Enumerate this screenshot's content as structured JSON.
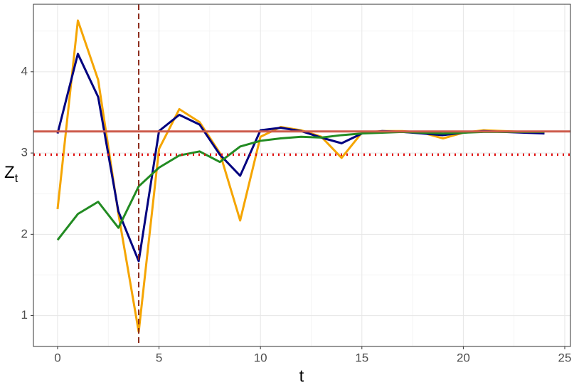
{
  "chart_data": {
    "type": "line",
    "x_label": "t",
    "y_label": "Z",
    "y_label_subscript": "t",
    "x": [
      0,
      1,
      2,
      3,
      4,
      5,
      6,
      7,
      8,
      9,
      10,
      11,
      12,
      13,
      14,
      15,
      16,
      17,
      18,
      19,
      20,
      21,
      22,
      23,
      24
    ],
    "series": [
      {
        "color": "#f5a500",
        "values": [
          2.31,
          4.63,
          3.9,
          2.25,
          0.8,
          3.05,
          3.54,
          3.38,
          3.0,
          2.17,
          3.2,
          3.32,
          3.28,
          3.2,
          2.94,
          3.25,
          3.27,
          3.27,
          3.25,
          3.18,
          3.25,
          3.28,
          3.27,
          3.26,
          3.25
        ]
      },
      {
        "color": "#00007f",
        "values": [
          3.24,
          4.22,
          3.69,
          2.28,
          1.67,
          3.27,
          3.47,
          3.35,
          2.98,
          2.72,
          3.28,
          3.31,
          3.27,
          3.19,
          3.12,
          3.24,
          3.27,
          3.26,
          3.24,
          3.22,
          3.25,
          3.27,
          3.26,
          3.25,
          3.24
        ]
      },
      {
        "color": "#228b22",
        "values": [
          1.93,
          2.25,
          2.4,
          2.08,
          2.59,
          2.82,
          2.97,
          3.02,
          2.89,
          3.08,
          3.15,
          3.18,
          3.2,
          3.19,
          3.22,
          3.24,
          3.25,
          3.26,
          3.25,
          3.24,
          3.25,
          3.26,
          3.26,
          3.26,
          3.26
        ]
      }
    ],
    "hlines": [
      {
        "value": 3.265,
        "color": "#cd5c4c",
        "style": "solid"
      },
      {
        "value": 2.98,
        "color": "#e01010",
        "style": "dotted"
      }
    ],
    "vlines": [
      {
        "value": 4,
        "color": "#8b2a1a",
        "style": "dashed"
      }
    ],
    "xlim": [
      -1.19,
      25.28
    ],
    "ylim": [
      0.62,
      4.83
    ],
    "xticks": [
      0,
      5,
      10,
      15,
      20,
      25
    ],
    "yticks": [
      1,
      2,
      3,
      4
    ],
    "x_minor_grid": [
      2.5,
      7.5,
      12.5,
      17.5,
      22.5
    ],
    "y_minor_grid": [
      1.5,
      2.5,
      3.5,
      4.5
    ],
    "grid": true
  }
}
